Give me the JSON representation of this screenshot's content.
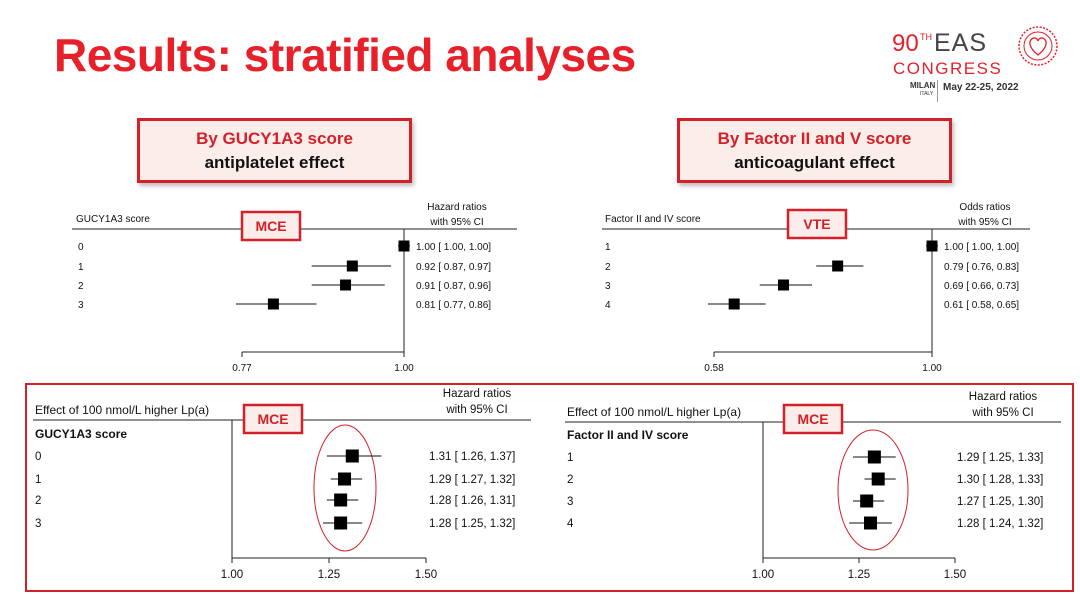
{
  "slide": {
    "title": "Results: stratified analyses"
  },
  "logo": {
    "number": "90",
    "ordinal": "TH",
    "name": "EAS",
    "congress": "CONGRESS",
    "city": "MILAN",
    "country": "ITALY",
    "dates": "May 22-25, 2022",
    "accent_color": "#e8202a"
  },
  "callouts": {
    "left": {
      "line1": "By GUCY1A3 score",
      "line2": "antiplatelet effect"
    },
    "right": {
      "line1": "By Factor II and V score",
      "line2": "anticoagulant effect"
    }
  },
  "chart_data": [
    {
      "type": "forest",
      "panel": "top-left",
      "row_header": "GUCY1A3 score",
      "outcome_tag": "MCE",
      "effect_header": [
        "Hazard ratios",
        "with 95% CI"
      ],
      "categories": [
        "0",
        "1",
        "2",
        "3"
      ],
      "estimates": [
        1.0,
        0.92,
        0.91,
        0.81
      ],
      "lower": [
        1.0,
        0.87,
        0.87,
        0.77
      ],
      "upper": [
        1.0,
        0.97,
        0.96,
        0.86
      ],
      "labels": [
        "1.00 [ 1.00,  1.00]",
        "0.92 [ 0.87,  0.97]",
        "0.91 [ 0.87,  0.96]",
        "0.81 [ 0.77,  0.86]"
      ],
      "xticks": [
        "0.77",
        "1.00"
      ],
      "xlim": [
        0.77,
        1.0
      ],
      "reference_line": 1.0,
      "scale": "log"
    },
    {
      "type": "forest",
      "panel": "top-right",
      "row_header": "Factor II and IV score",
      "outcome_tag": "VTE",
      "effect_header": [
        "Odds ratios",
        "with 95% CI"
      ],
      "categories": [
        "1",
        "2",
        "3",
        "4"
      ],
      "estimates": [
        1.0,
        0.79,
        0.69,
        0.61
      ],
      "lower": [
        1.0,
        0.76,
        0.66,
        0.58
      ],
      "upper": [
        1.0,
        0.83,
        0.73,
        0.65
      ],
      "labels": [
        "1.00 [ 1.00,  1.00]",
        "0.79 [ 0.76,  0.83]",
        "0.69 [ 0.66,  0.73]",
        "0.61 [ 0.58,  0.65]"
      ],
      "xticks": [
        "0.58",
        "1.00"
      ],
      "xlim": [
        0.58,
        1.0
      ],
      "reference_line": 1.0,
      "scale": "log"
    },
    {
      "type": "forest",
      "panel": "bottom-left",
      "exposure_label": "Effect of 100 nmol/L higher Lp(a)",
      "row_header": "GUCY1A3 score",
      "outcome_tag": "MCE",
      "effect_header": [
        "Hazard ratios",
        "with 95% CI"
      ],
      "categories": [
        "0",
        "1",
        "2",
        "3"
      ],
      "estimates": [
        1.31,
        1.29,
        1.28,
        1.28
      ],
      "lower": [
        1.26,
        1.27,
        1.26,
        1.25
      ],
      "upper": [
        1.37,
        1.32,
        1.31,
        1.32
      ],
      "labels": [
        "1.31 [ 1.26,  1.37]",
        "1.29 [ 1.27,  1.32]",
        "1.28 [ 1.26,  1.31]",
        "1.28 [ 1.25,  1.32]"
      ],
      "xticks": [
        "1.00",
        "1.25",
        "1.50"
      ],
      "xlim": [
        1.0,
        1.5
      ],
      "reference_line": 1.0,
      "scale": "linear"
    },
    {
      "type": "forest",
      "panel": "bottom-right",
      "exposure_label": "Effect of 100 nmol/L higher Lp(a)",
      "row_header": "Factor II and IV score",
      "outcome_tag": "MCE",
      "effect_header": [
        "Hazard ratios",
        "with 95% CI"
      ],
      "categories": [
        "1",
        "2",
        "3",
        "4"
      ],
      "estimates": [
        1.29,
        1.3,
        1.27,
        1.28
      ],
      "lower": [
        1.25,
        1.28,
        1.25,
        1.24
      ],
      "upper": [
        1.33,
        1.33,
        1.3,
        1.32
      ],
      "labels": [
        "1.29 [ 1.25,  1.33]",
        "1.30 [ 1.28,  1.33]",
        "1.27 [ 1.25,  1.30]",
        "1.28 [ 1.24,  1.32]"
      ],
      "xticks": [
        "1.00",
        "1.25",
        "1.50"
      ],
      "xlim": [
        1.0,
        1.5
      ],
      "reference_line": 1.0,
      "scale": "linear"
    }
  ]
}
